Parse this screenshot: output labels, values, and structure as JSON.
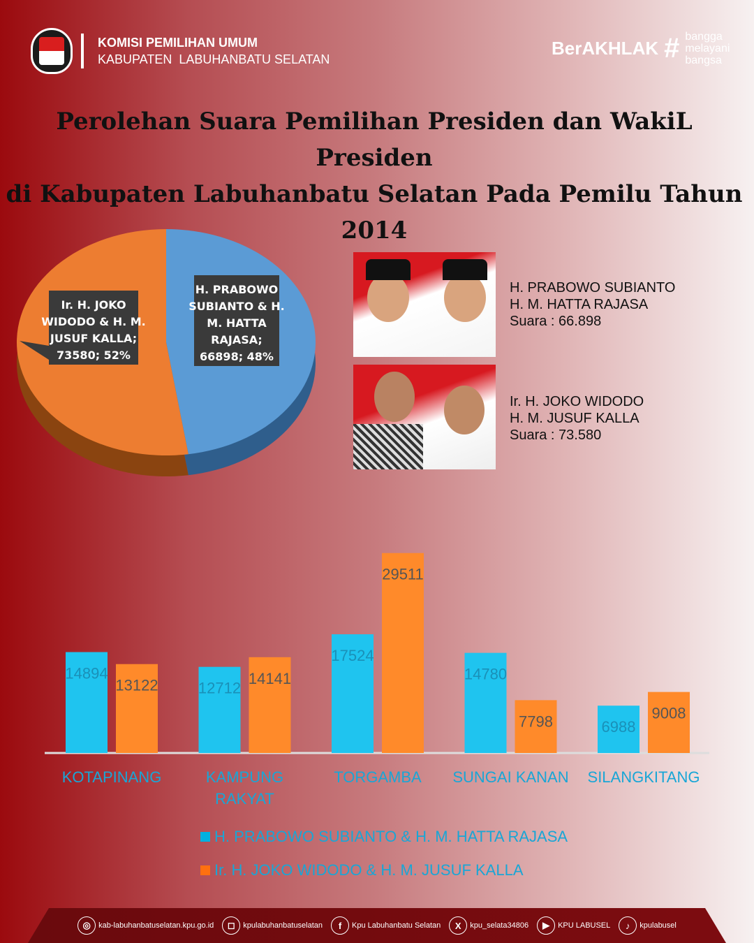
{
  "header": {
    "org_name": "KOMISI PEMILIHAN UMUM",
    "org_region": "KABUPATEN  LABUHANBATU SELATAN",
    "brand": "BerAKHLAK",
    "hashtag": "#",
    "tagline": [
      "bangga",
      "melayani",
      "bangsa"
    ]
  },
  "title": [
    "Perolehan Suara Pemilihan Presiden dan WakiL Presiden",
    "di Kabupaten Labuhanbatu Selatan Pada Pemilu Tahun 2014"
  ],
  "candidates": [
    {
      "line1": "H. PRABOWO SUBIANTO",
      "line2": "H. M. HATTA RAJASA",
      "votes": "Suara : 66.898"
    },
    {
      "line1": "Ir. H. JOKO WIDODO",
      "line2": "H. M. JUSUF KALLA",
      "votes": "Suara : 73.580"
    }
  ],
  "chart_data": [
    {
      "type": "pie",
      "slices": [
        {
          "label": "H. PRABOWO SUBIANTO & H. M. HATTA RAJASA; 66898; 48%",
          "value": 66898,
          "percent": 48,
          "color": "#5b9bd5"
        },
        {
          "label": "Ir. H. JOKO WIDODO & H. M. JUSUF KALLA; 73580; 52%",
          "value": 73580,
          "percent": 52,
          "color": "#ed7d31"
        }
      ]
    },
    {
      "type": "bar",
      "categories": [
        "KOTAPINANG",
        "KAMPUNG RAKYAT",
        "TORGAMBA",
        "SUNGAI KANAN",
        "SILANGKITANG"
      ],
      "series": [
        {
          "name": "H. PRABOWO SUBIANTO & H. M. HATTA RAJASA",
          "values": [
            14894,
            12712,
            17524,
            14780,
            6988
          ],
          "color": "#00b0e0"
        },
        {
          "name": "Ir. H. JOKO WIDODO & H. M. JUSUF KALLA",
          "values": [
            13122,
            14141,
            29511,
            7798,
            9008
          ],
          "color": "#ff7010"
        }
      ],
      "legend": "bottom"
    }
  ],
  "footer": [
    {
      "icon": "globe-icon",
      "glyph": "◎",
      "text": "kab-labuhanbatuselatan.kpu.go.id"
    },
    {
      "icon": "instagram-icon",
      "glyph": "◻",
      "text": "kpulabuhanbatuselatan"
    },
    {
      "icon": "facebook-icon",
      "glyph": "f",
      "text": "Kpu Labuhanbatu Selatan"
    },
    {
      "icon": "x-icon",
      "glyph": "X",
      "text": "kpu_selata34806"
    },
    {
      "icon": "youtube-icon",
      "glyph": "▶",
      "text": "KPU LABUSEL"
    },
    {
      "icon": "tiktok-icon",
      "glyph": "♪",
      "text": "kpulabusel"
    }
  ]
}
